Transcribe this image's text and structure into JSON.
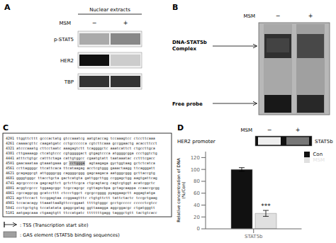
{
  "chart_data": {
    "type": "bar",
    "categories": [
      "STAT5b"
    ],
    "series": [
      {
        "name": "Con",
        "color": "#111111",
        "values": [
          100
        ],
        "errors": [
          3
        ]
      },
      {
        "name": "MSM",
        "color": "#e0e0e0",
        "values": [
          26
        ],
        "errors": [
          5
        ],
        "annotation": "***"
      }
    ],
    "ylabel": "Relative concentration of DNA\n(%/Con)",
    "ylim": [
      0,
      130
    ],
    "yticks": [
      0,
      20,
      40,
      60,
      80,
      100,
      120
    ],
    "legend": "upper right",
    "grid": false,
    "annotations": [
      [
        "A",
        "Nuclear extracts",
        "MSM",
        "−",
        "+",
        "p-STAT5",
        "HER2",
        "TBP"
      ],
      [
        "B",
        "MSM",
        "−",
        "+",
        "DNA-STAT5b",
        "Complex",
        "Free probe"
      ],
      [
        "C",
        [
          "4201 ttggttcttt gcccactatg gtccaaatcg aatgtaccag tccaaagtcc ctccttcaaa",
          "4261 caaaacgttc caagatgatc cctgcccccca cgtcttcaaa gccggaactg acaccttcct",
          "4321 atcccaaatg cttcctaatc aaagagtctt tcaggggctc aaatcattct ctgccttgca",
          "4381 cttgaaaagp ctcatgtccc cgtgggggact gtgagtccca atggggcgga ccctggtctg",
          "4441 atttctgtgc catttctaga cattgtggcc cgaatgtatt taataaatac cctttcgacc",
          "4501 gaacaaataa gtaaatgaaa gc cctggga  agtaagaga gyctggtaag gctctcatca",
          "4561 ccttaggggc ttcattcaca ttcataagag acctcgtggg gaaactaagg ttcagggatt",
          "4621 gcagaggcgt attggggcgg caggggcggg gagcaagaca aatgggcggg gcttaccgtg",
          "4681 ggggtgggc ttacctgcta gactcatgta gattggcttgg ccggagctgg aagtgattcag",
          "4741 agcgccccca gagcagttct gctcttcgca ctgcagtacg cagtcgtggt acatcggctc",
          "4801 acggtcgccc tggaagcggc tcgccagcgc cgttagncbpa gctagcaappa ccaaccgcgg",
          "4861 cgccaggcgg gcatccttt ctccctggct cgcgccgggg pyaggaagctt aggagtatga",
          "4921 agcttccact tccggagtaa ccggaagtttc ctgtgttctt tattctactc tccgctgaag",
          "4981 tccacacagy ttaaattaaXgttcccggaat ttttgtgggc gcctgccccc ccccctcgtcc",
          "5041 ccctgctgtg tccatatata gaggcgatag ggttaaagga aggcggacgc ctgatgggtt",
          "5101 aatgagcaaa ctgaagtgtt ttccatgatc tttttttgagg tagggctgtt tactgtcacc"
        ],
        ": TSS (Transcription start site)",
        ": GAS element (STAT5b binding sequences)"
      ],
      [
        "D",
        "MSM",
        "−",
        "+",
        "HER2 promoter",
        "STAT5b"
      ]
    ]
  }
}
